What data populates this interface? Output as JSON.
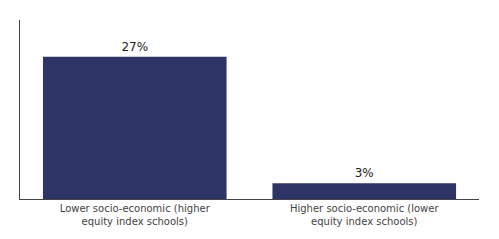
{
  "chart_data": {
    "type": "bar",
    "categories": [
      "Lower socio-economic (higher equity index schools)",
      "Higher socio-economic (lower equity index schools)"
    ],
    "values": [
      27,
      3
    ],
    "value_labels": [
      "27%",
      "3%"
    ],
    "color": "#2E3566",
    "ylim": [
      0,
      34
    ],
    "data_labels": true,
    "tick_labels": "x",
    "grid": false
  }
}
